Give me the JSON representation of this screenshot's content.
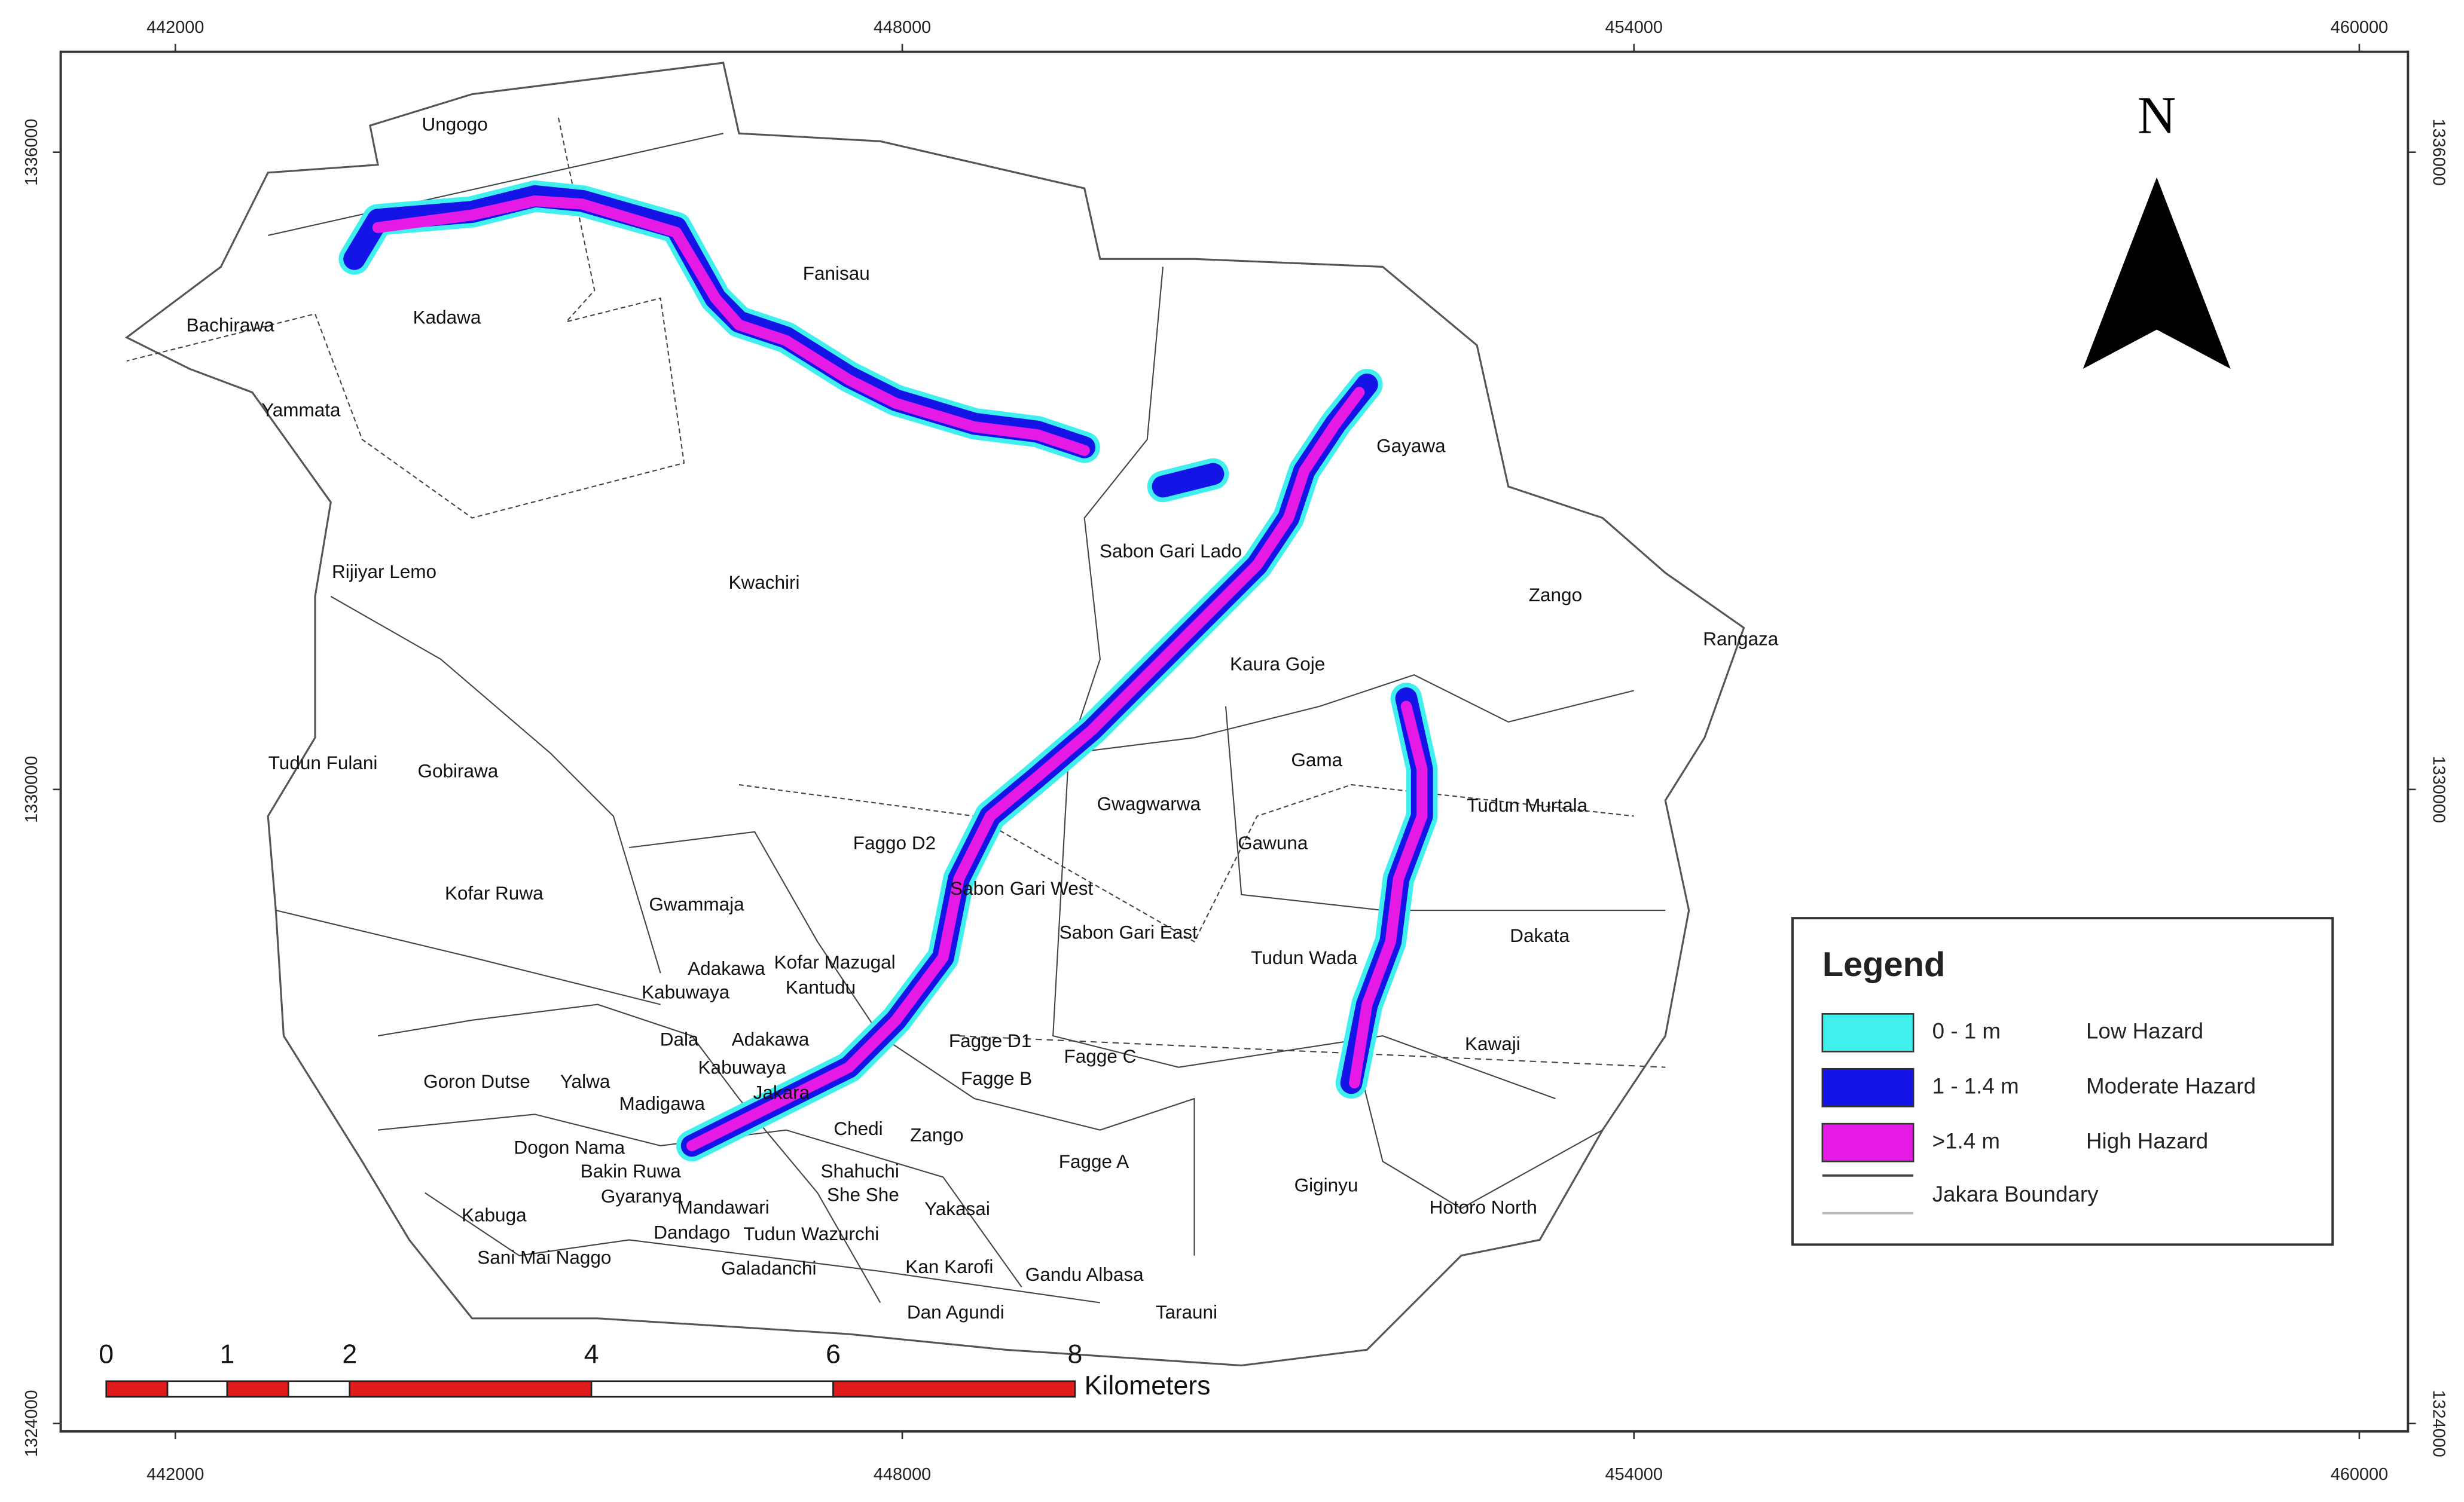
{
  "map": {
    "x_ticks": [
      "442000",
      "448000",
      "454000",
      "460000"
    ],
    "y_ticks": [
      "1336000",
      "1330000",
      "1324000"
    ],
    "north": "N",
    "places": [
      "Ungogo",
      "Fanisau",
      "Kadawa",
      "Bachirawa",
      "Yammata",
      "Gayawa",
      "Sabon Gari Lado",
      "Kwachiri",
      "Rijiyar Lemo",
      "Zango",
      "Rangaza",
      "Kaura Goje",
      "Tudun Fulani",
      "Gobirawa",
      "Gama",
      "Gwagwarwa",
      "Tudun Murtala",
      "Gawuna",
      "Faggo D2",
      "Sabon Gari West",
      "Kofar Ruwa",
      "Gwammaja",
      "Sabon Gari East",
      "Dakata",
      "Tudun Wada",
      "Adakawa",
      "Kofar Mazugal",
      "Kabuwaya",
      "Kantudu",
      "Dala",
      "Adakawa",
      "Fagge D1",
      "Fagge C",
      "Kawaji",
      "Kabuwaya",
      "Fagge B",
      "Goron Dutse",
      "Yalwa",
      "Jakara",
      "Madigawa",
      "Chedi",
      "Zango",
      "Dogon Nama",
      "Fagge A",
      "Bakin Ruwa",
      "Shahuchi",
      "Giginyu",
      "Gyaranya",
      "She She",
      "Mandawari",
      "Yakasai",
      "Hotoro North",
      "Kabuga",
      "Dandago",
      "Tudun Wazurchi",
      "Sani Mai Naggo",
      "Kan Karofi",
      "Gandu Albasa",
      "Galadanchi",
      "Dan Agundi",
      "Tarauni"
    ],
    "legend": {
      "title": "Legend",
      "items": [
        {
          "range": "0 - 1 m",
          "label": "Low Hazard"
        },
        {
          "range": "1 - 1.4 m",
          "label": "Moderate Hazard"
        },
        {
          "range": ">1.4 m",
          "label": "High Hazard"
        }
      ],
      "boundary": "Jakara Boundary"
    },
    "scale": {
      "labels": [
        "0",
        "1",
        "2",
        "4",
        "6",
        "8"
      ],
      "unit": "Kilometers"
    }
  }
}
